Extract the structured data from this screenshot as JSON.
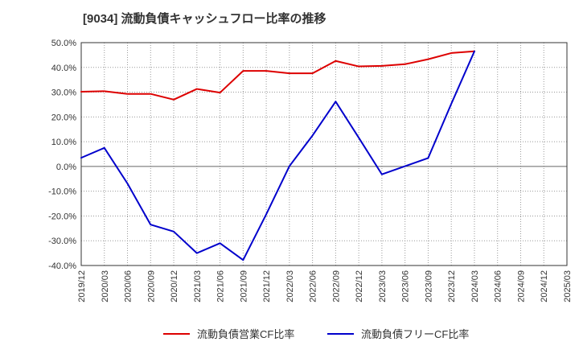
{
  "title": "[9034]  流動負債キャッシュフロー比率の推移",
  "colors": {
    "series1": "#dd0000",
    "series2": "#0000cc",
    "grid": "#999999",
    "zero": "#666666",
    "axis": "#333333"
  },
  "chart_data": {
    "type": "line",
    "title": "[9034]  流動負債キャッシュフロー比率の推移",
    "xlabel": "",
    "ylabel": "",
    "ylim": [
      -40,
      50
    ],
    "yticks": [
      50,
      40,
      30,
      20,
      10,
      0,
      -10,
      -20,
      -30,
      -40
    ],
    "ytick_labels": [
      "50.0%",
      "40.0%",
      "30.0%",
      "20.0%",
      "10.0%",
      "0.0%",
      "-10.0%",
      "-20.0%",
      "-30.0%",
      "-40.0%"
    ],
    "categories": [
      "2019/12",
      "2020/03",
      "2020/06",
      "2020/09",
      "2020/12",
      "2021/03",
      "2021/06",
      "2021/09",
      "2021/12",
      "2022/03",
      "2022/06",
      "2022/09",
      "2022/12",
      "2023/03",
      "2023/06",
      "2023/09",
      "2023/12",
      "2024/03",
      "2024/06",
      "2024/09",
      "2024/12",
      "2025/03"
    ],
    "series": [
      {
        "name": "流動負債営業CF比率",
        "color": "#dd0000",
        "values": [
          30.2,
          30.4,
          29.3,
          29.3,
          27.0,
          31.3,
          29.8,
          38.6,
          38.6,
          37.6,
          37.6,
          42.6,
          40.4,
          40.6,
          41.3,
          43.3,
          45.8,
          46.5,
          null,
          null,
          null,
          null
        ]
      },
      {
        "name": "流動負債フリーCF比率",
        "color": "#0000cc",
        "values": [
          3.5,
          7.5,
          -6.9,
          -23.5,
          -26.3,
          -35.0,
          -31.0,
          -37.8,
          -19.3,
          0.1,
          12.5,
          26.2,
          11.6,
          -3.2,
          0.1,
          3.4,
          25.3,
          46.5,
          null,
          null,
          null,
          null
        ]
      }
    ],
    "legend": "bottom-center"
  }
}
